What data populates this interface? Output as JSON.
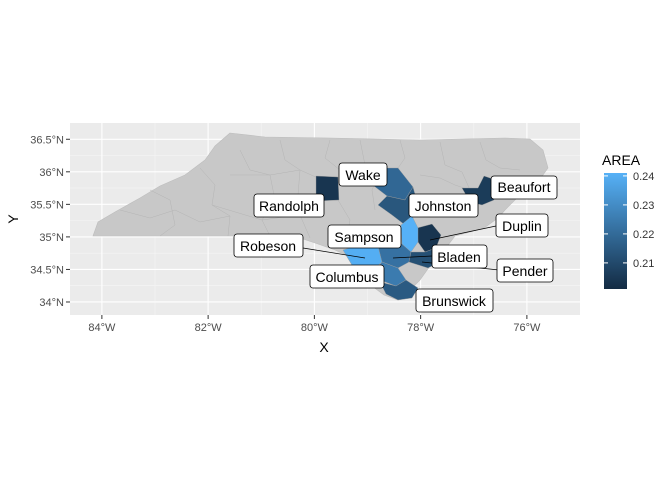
{
  "chart_data": {
    "type": "choropleth",
    "x_label": "X",
    "y_label": "Y",
    "x_ticks": [
      "84°W",
      "82°W",
      "80°W",
      "78°W",
      "76°W"
    ],
    "y_ticks": [
      "34°N",
      "34.5°N",
      "35°N",
      "35.5°N",
      "36°N",
      "36.5°N"
    ],
    "xlim": [
      -84.6,
      -75.0
    ],
    "ylim": [
      33.8,
      36.75
    ],
    "grid": true,
    "legend": {
      "title": "AREA",
      "position": "right",
      "min": 0.201,
      "max": 0.241,
      "ticks": [
        "0.21",
        "0.22",
        "0.23",
        "0.24"
      ],
      "low_color": "#132B43",
      "high_color": "#56B1F7"
    },
    "base_fill": "#c8c8c8",
    "counties": [
      {
        "name": "Wake",
        "area": 0.219
      },
      {
        "name": "Randolph",
        "area": 0.204
      },
      {
        "name": "Johnston",
        "area": 0.214
      },
      {
        "name": "Beaufort",
        "area": 0.206
      },
      {
        "name": "Duplin",
        "area": 0.204
      },
      {
        "name": "Sampson",
        "area": 0.241
      },
      {
        "name": "Robeson",
        "area": 0.24
      },
      {
        "name": "Bladen",
        "area": 0.222
      },
      {
        "name": "Columbus",
        "area": 0.225
      },
      {
        "name": "Pender",
        "area": 0.212
      },
      {
        "name": "Brunswick",
        "area": 0.215
      }
    ]
  }
}
